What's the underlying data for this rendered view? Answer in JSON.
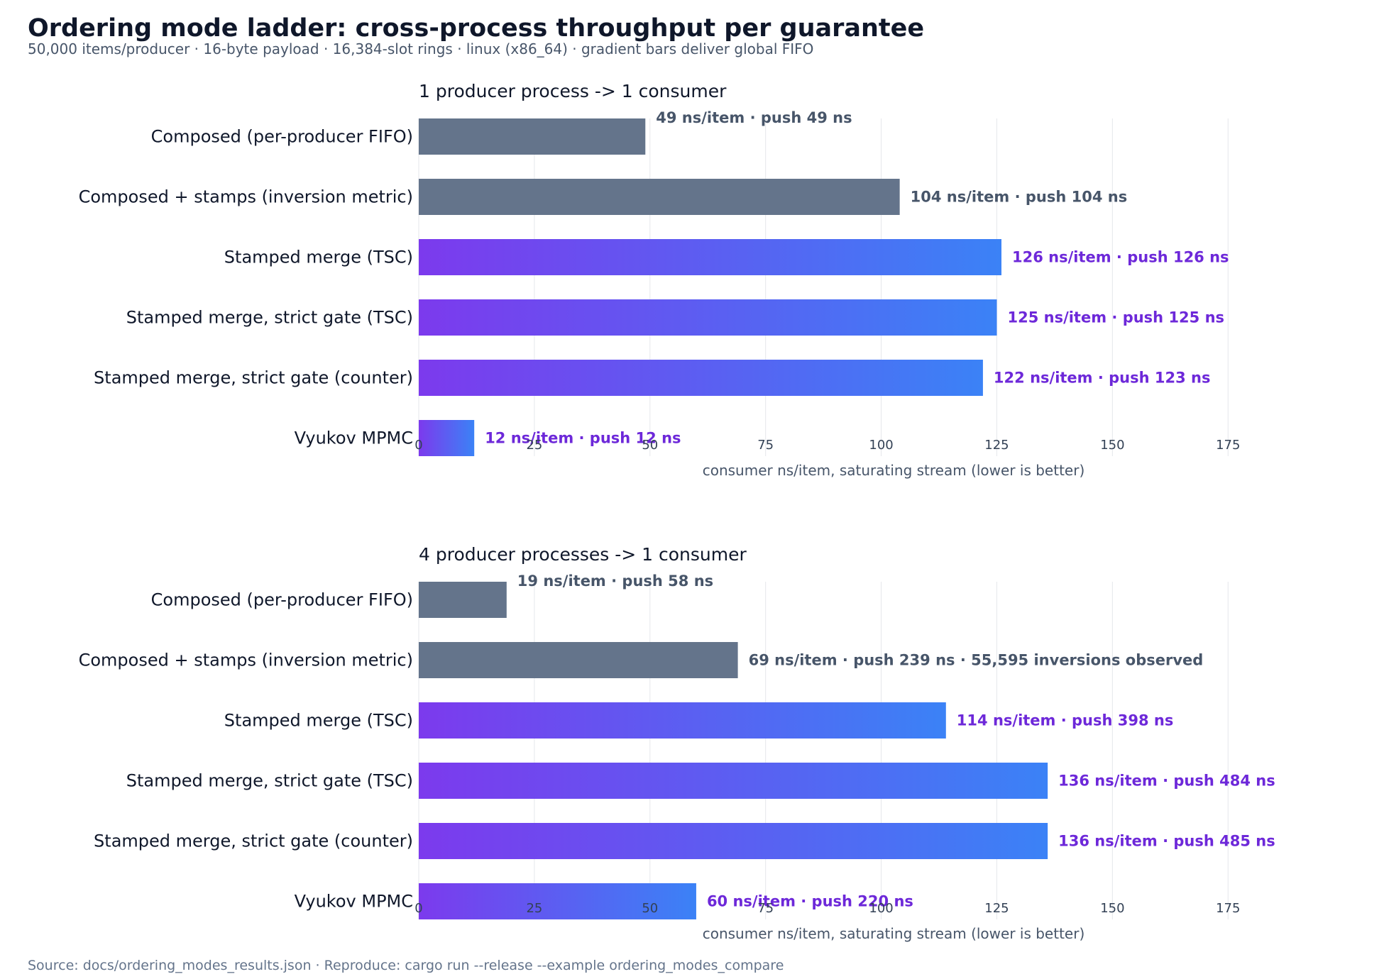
{
  "title": "Ordering mode ladder: cross-process throughput per guarantee",
  "subtitle": "50,000 items/producer  ·  16-byte payload  ·  16,384-slot rings  ·  linux (x86_64)  ·  gradient bars deliver global FIFO",
  "footer": "Source: docs/ordering_modes_results.json   ·   Reproduce: cargo run --release --example ordering_modes_compare",
  "colors": {
    "composed": "#64748b",
    "composed_label": "#475569",
    "gradient_start": "#7c3aed",
    "gradient_end": "#3b82f6",
    "gradient_label": "#6d28d9"
  },
  "chart_data": [
    {
      "type": "bar",
      "orientation": "horizontal",
      "title": "1 producer process -> 1 consumer",
      "xlabel": "consumer ns/item, saturating stream (lower is better)",
      "xlim": [
        0,
        190
      ],
      "xticks": [
        0,
        25,
        50,
        75,
        100,
        125,
        150,
        175
      ],
      "grid": true,
      "categories": [
        "Composed (per-producer FIFO)",
        "Composed + stamps (inversion metric)",
        "Stamped merge (TSC)",
        "Stamped merge, strict gate (TSC)",
        "Stamped merge, strict gate (counter)",
        "Vyukov MPMC"
      ],
      "values": [
        49,
        104,
        126,
        125,
        122,
        12
      ],
      "style": [
        "solid",
        "solid",
        "gradient",
        "gradient",
        "gradient",
        "gradient"
      ],
      "labels": [
        "49 ns/item  ·  push 49 ns",
        "104 ns/item  ·  push 104 ns",
        "126 ns/item  ·  push 126 ns",
        "125 ns/item  ·  push 125 ns",
        "122 ns/item  ·  push 123 ns",
        "12 ns/item  ·  push 12 ns"
      ]
    },
    {
      "type": "bar",
      "orientation": "horizontal",
      "title": "4 producer processes -> 1 consumer",
      "xlabel": "consumer ns/item, saturating stream (lower is better)",
      "xlim": [
        0,
        190
      ],
      "xticks": [
        0,
        25,
        50,
        75,
        100,
        125,
        150,
        175
      ],
      "grid": true,
      "categories": [
        "Composed (per-producer FIFO)",
        "Composed + stamps (inversion metric)",
        "Stamped merge (TSC)",
        "Stamped merge, strict gate (TSC)",
        "Stamped merge, strict gate (counter)",
        "Vyukov MPMC"
      ],
      "values": [
        19,
        69,
        114,
        136,
        136,
        60
      ],
      "style": [
        "solid",
        "solid",
        "gradient",
        "gradient",
        "gradient",
        "gradient"
      ],
      "labels": [
        "19 ns/item  ·  push 58 ns",
        "69 ns/item  ·  push 239 ns  ·  55,595 inversions observed",
        "114 ns/item  ·  push 398 ns",
        "136 ns/item  ·  push 484 ns",
        "136 ns/item  ·  push 485 ns",
        "60 ns/item  ·  push 220 ns"
      ]
    }
  ]
}
